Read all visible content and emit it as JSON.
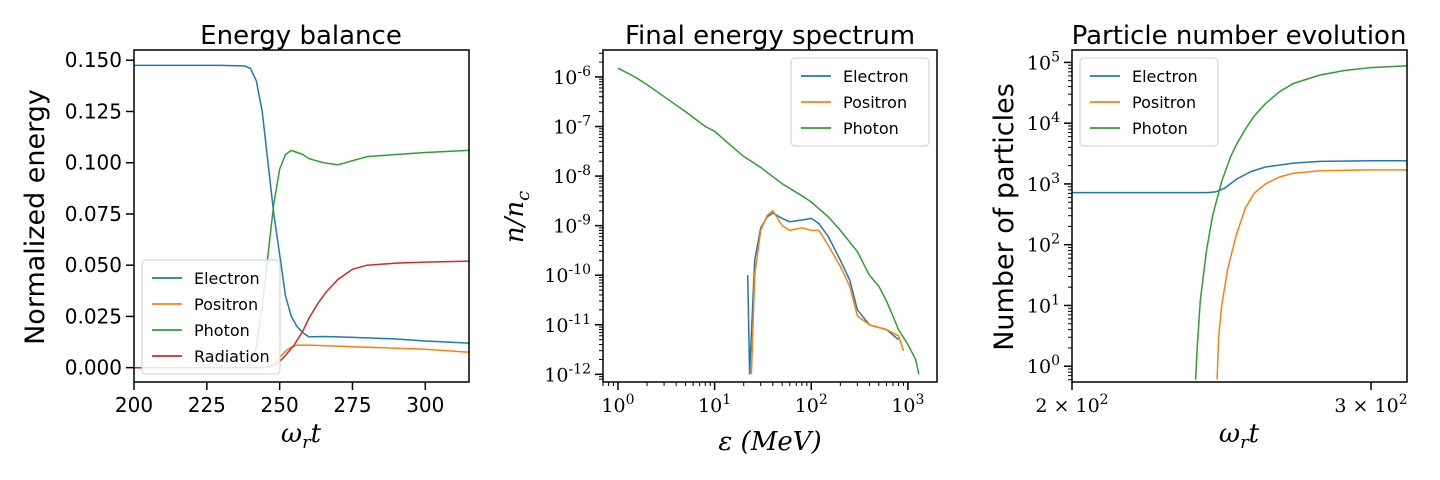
{
  "colors": {
    "Electron": "#1f77b4",
    "Positron": "#ff7f0e",
    "Photon": "#2ca02c",
    "Radiation": "#d62728"
  },
  "chart_data": [
    {
      "type": "line",
      "title": "Energy balance",
      "xlabel": "ωrt",
      "ylabel": "Normalized energy",
      "xlim": [
        200,
        315
      ],
      "ylim": [
        -0.007,
        0.155
      ],
      "xticks": [
        200,
        225,
        250,
        275,
        300
      ],
      "xtick_labels": [
        "200",
        "225",
        "250",
        "275",
        "300"
      ],
      "yticks": [
        0.0,
        0.025,
        0.05,
        0.075,
        0.1,
        0.125,
        0.15
      ],
      "ytick_labels": [
        "0.000",
        "0.025",
        "0.050",
        "0.075",
        "0.100",
        "0.125",
        "0.150"
      ],
      "legend": "lower-left",
      "series": [
        {
          "name": "Electron",
          "x": [
            200,
            230,
            238,
            240,
            242,
            244,
            246,
            248,
            250,
            252,
            254,
            256,
            258,
            260,
            265,
            270,
            280,
            290,
            300,
            315
          ],
          "values": [
            0.1475,
            0.1475,
            0.1472,
            0.146,
            0.14,
            0.125,
            0.1,
            0.075,
            0.055,
            0.035,
            0.025,
            0.02,
            0.017,
            0.015,
            0.0152,
            0.015,
            0.0145,
            0.014,
            0.013,
            0.012
          ]
        },
        {
          "name": "Positron",
          "x": [
            200,
            244,
            246,
            248,
            250,
            252,
            254,
            256,
            260,
            270,
            280,
            290,
            300,
            315
          ],
          "values": [
            0.0,
            0.0,
            0.0005,
            0.002,
            0.005,
            0.008,
            0.01,
            0.011,
            0.011,
            0.0105,
            0.01,
            0.0095,
            0.009,
            0.0075
          ]
        },
        {
          "name": "Photon",
          "x": [
            200,
            238,
            240,
            242,
            244,
            246,
            248,
            250,
            252,
            254,
            256,
            258,
            260,
            265,
            270,
            275,
            280,
            290,
            300,
            315
          ],
          "values": [
            0.0,
            0.0,
            0.002,
            0.01,
            0.03,
            0.055,
            0.08,
            0.097,
            0.104,
            0.106,
            0.105,
            0.104,
            0.102,
            0.1,
            0.099,
            0.101,
            0.103,
            0.104,
            0.105,
            0.106
          ]
        },
        {
          "name": "Radiation",
          "x": [
            200,
            244,
            248,
            250,
            252,
            255,
            258,
            260,
            263,
            266,
            270,
            275,
            280,
            290,
            300,
            315
          ],
          "values": [
            0.0,
            0.0,
            0.001,
            0.003,
            0.006,
            0.011,
            0.018,
            0.024,
            0.031,
            0.037,
            0.043,
            0.048,
            0.05,
            0.051,
            0.0515,
            0.052
          ]
        }
      ]
    },
    {
      "type": "line",
      "title": "Final energy spectrum",
      "xlabel": "ε (MeV)",
      "ylabel": "n/nc",
      "xscale": "log",
      "yscale": "log",
      "xlim": [
        0.7,
        2000
      ],
      "ylim": [
        7e-13,
        3.5e-06
      ],
      "xticks": [
        1,
        10,
        100,
        1000
      ],
      "xtick_labels": [
        "10^0",
        "10^1",
        "10^2",
        "10^3"
      ],
      "yticks": [
        1e-12,
        1e-11,
        1e-10,
        1e-09,
        1e-08,
        1e-07,
        1e-06
      ],
      "ytick_labels": [
        "10^-12",
        "10^-11",
        "10^-10",
        "10^-9",
        "10^-8",
        "10^-7",
        "10^-6"
      ],
      "legend": "top-right",
      "series": [
        {
          "name": "Electron",
          "x": [
            22,
            23,
            26,
            30,
            35,
            40,
            50,
            60,
            80,
            100,
            120,
            150,
            200,
            250,
            300,
            400,
            600,
            800
          ],
          "values": [
            1e-10,
            1e-12,
            2e-10,
            9e-10,
            1.5e-09,
            1.8e-09,
            1.4e-09,
            1.2e-09,
            1.3e-09,
            1.4e-09,
            1.1e-09,
            6e-10,
            2e-10,
            8e-11,
            2e-11,
            1e-11,
            8e-12,
            5e-12
          ]
        },
        {
          "name": "Positron",
          "x": [
            24,
            26,
            30,
            35,
            40,
            50,
            60,
            80,
            100,
            120,
            150,
            200,
            250,
            300,
            400,
            600,
            800,
            900
          ],
          "values": [
            1e-12,
            1e-10,
            8e-10,
            1.6e-09,
            2e-09,
            1e-09,
            8e-10,
            9e-10,
            8e-10,
            8e-10,
            4e-10,
            1.5e-10,
            6e-11,
            1.5e-11,
            1e-11,
            8e-12,
            6e-12,
            3e-12
          ]
        },
        {
          "name": "Photon",
          "x": [
            1,
            1.5,
            2,
            3,
            5,
            8,
            10,
            15,
            20,
            30,
            50,
            80,
            100,
            150,
            200,
            300,
            400,
            500,
            600,
            700,
            800,
            1000,
            1200,
            1300
          ],
          "values": [
            1.5e-06,
            1e-06,
            7e-07,
            4e-07,
            2e-07,
            1e-07,
            8e-08,
            4e-08,
            2.5e-08,
            1.5e-08,
            7e-09,
            4e-09,
            3e-09,
            1.5e-09,
            8e-10,
            3e-10,
            1e-10,
            6e-11,
            3e-11,
            1.5e-11,
            8e-12,
            4e-12,
            2e-12,
            1e-12
          ]
        }
      ]
    },
    {
      "type": "line",
      "title": "Particle number evolution",
      "xlabel": "ωrt",
      "ylabel": "Number of particles",
      "xscale": "log",
      "yscale": "log",
      "xlim": [
        200,
        315
      ],
      "ylim": [
        0.55,
        160000
      ],
      "xticks": [
        200,
        300
      ],
      "xtick_labels": [
        "2 × 10^2",
        "3 × 10^2"
      ],
      "yticks": [
        1,
        10,
        100,
        1000,
        10000,
        100000
      ],
      "ytick_labels": [
        "10^0",
        "10^1",
        "10^2",
        "10^3",
        "10^4",
        "10^5"
      ],
      "legend": "top-left",
      "series": [
        {
          "name": "Electron",
          "x": [
            200,
            235,
            240,
            243,
            246,
            250,
            255,
            260,
            270,
            280,
            300,
            315
          ],
          "values": [
            720,
            720,
            720,
            740,
            850,
            1200,
            1600,
            1900,
            2200,
            2350,
            2400,
            2400
          ]
        },
        {
          "name": "Positron",
          "x": [
            243.5,
            244,
            245,
            247,
            250,
            253,
            256,
            260,
            265,
            270,
            280,
            300,
            315
          ],
          "values": [
            0.6,
            3,
            10,
            40,
            150,
            400,
            700,
            1000,
            1300,
            1500,
            1650,
            1700,
            1700
          ]
        },
        {
          "name": "Photon",
          "x": [
            236.5,
            237,
            238,
            240,
            242,
            245,
            248,
            250,
            253,
            256,
            260,
            265,
            270,
            280,
            290,
            300,
            315
          ],
          "values": [
            0.6,
            2,
            12,
            80,
            300,
            1100,
            2800,
            4500,
            8000,
            13000,
            21000,
            33000,
            45000,
            62000,
            74000,
            82000,
            88000
          ]
        }
      ]
    }
  ],
  "labels": {
    "p1_title": "Energy balance",
    "p1_ylabel": "Normalized energy",
    "p1_xlabel": "ωrt",
    "p2_title": "Final energy spectrum",
    "p2_xlabel": "ε (MeV)",
    "p2_ylabel": "n/nc",
    "p3_title": "Particle number evolution",
    "p3_ylabel": "Number of particles",
    "p3_xlabel": "ωrt"
  }
}
